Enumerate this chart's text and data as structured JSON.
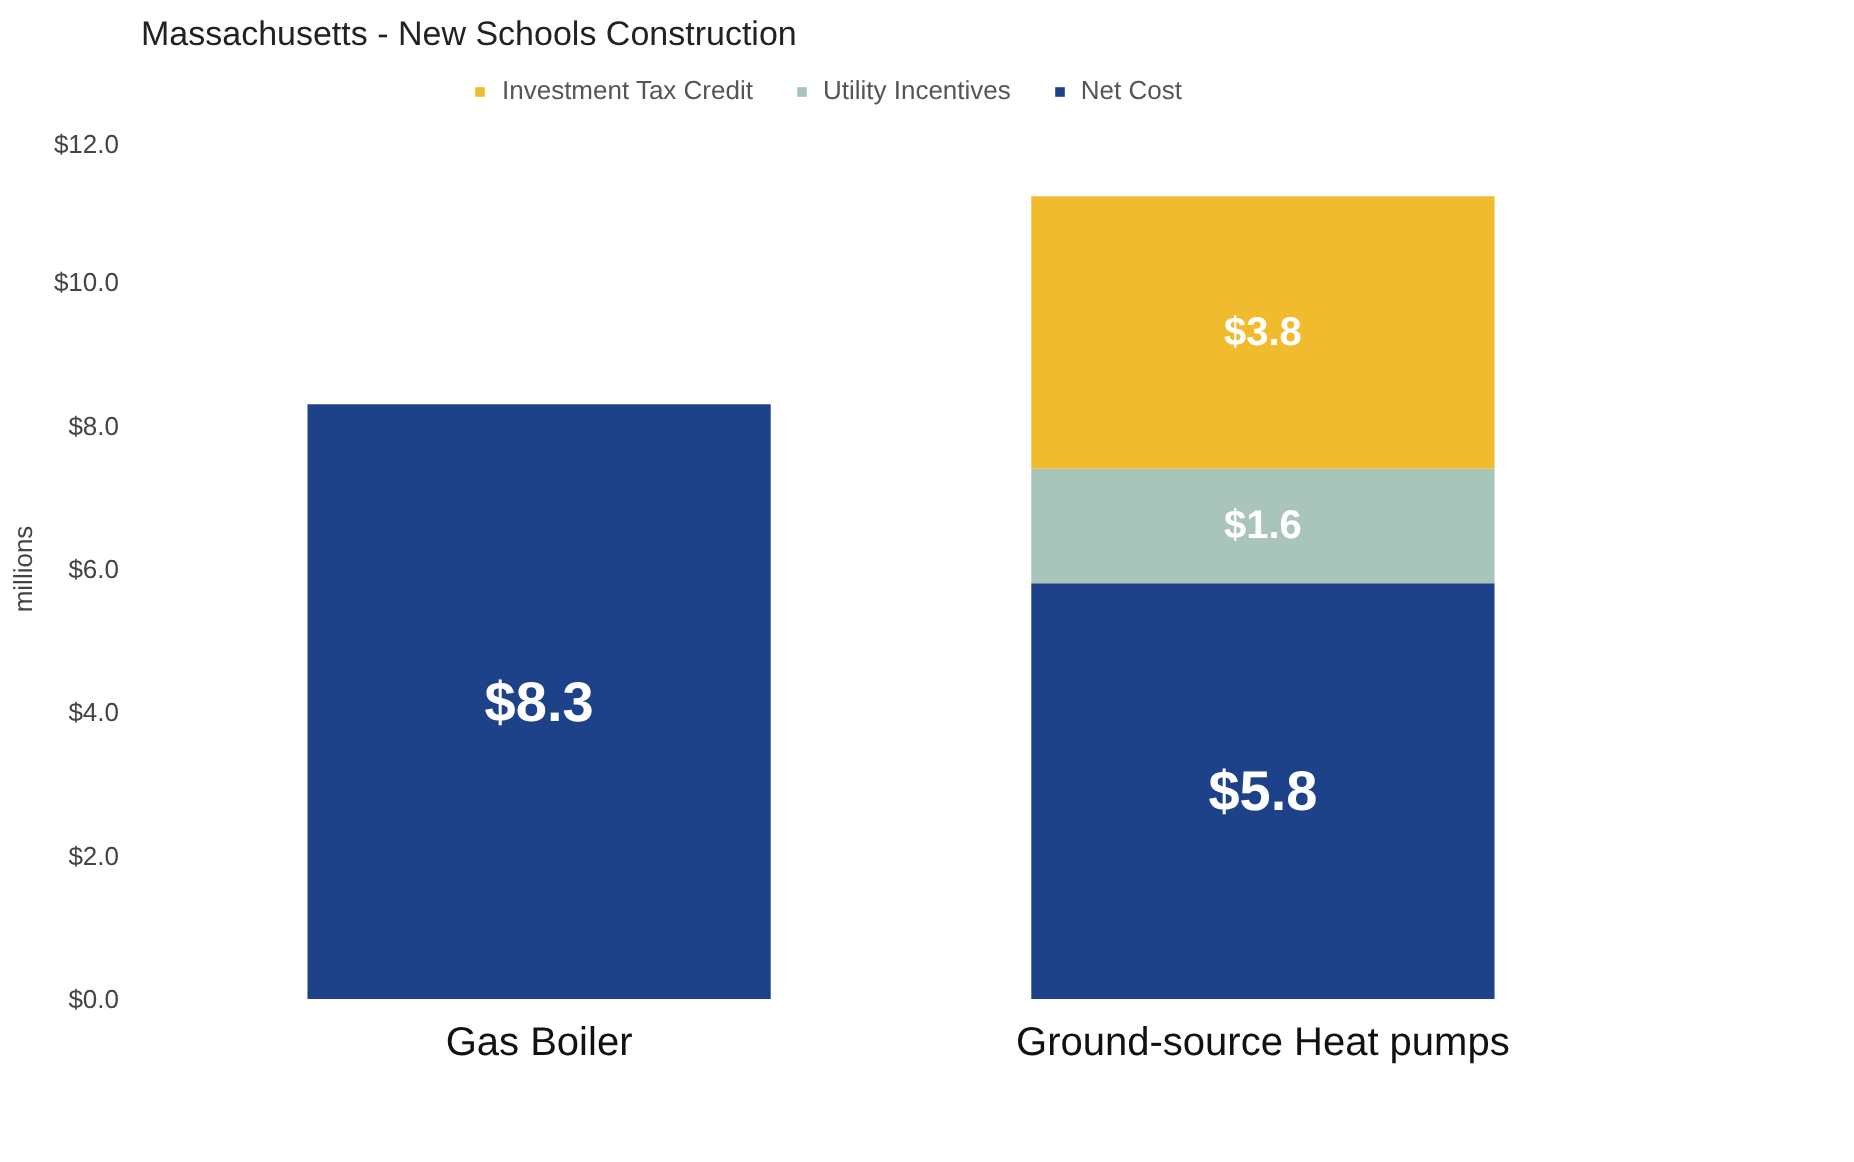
{
  "chart_data": {
    "type": "bar",
    "title": "Massachusetts - New Schools Construction",
    "ylabel": "millions",
    "categories": [
      "Gas Boiler",
      "Ground-source Heat pumps"
    ],
    "stacked": true,
    "series": [
      {
        "name": "Net Cost",
        "color": "#1d428a",
        "values": [
          8.3,
          5.8
        ],
        "value_labels": [
          "$8.3",
          "$5.8"
        ]
      },
      {
        "name": "Utility Incentives",
        "color": "#a9c4bb",
        "values": [
          null,
          1.6
        ],
        "value_labels": [
          null,
          "$1.6"
        ]
      },
      {
        "name": "Investment Tax Credit",
        "color": "#f0bc2e",
        "values": [
          null,
          3.8
        ],
        "value_labels": [
          null,
          "$3.8"
        ]
      }
    ],
    "ylim": [
      0,
      12
    ],
    "yticks": [
      {
        "value": 0,
        "label": "$0.0"
      },
      {
        "value": 2,
        "label": "$2.0"
      },
      {
        "value": 4,
        "label": "$4.0"
      },
      {
        "value": 6,
        "label": "$6.0"
      },
      {
        "value": 8,
        "label": "$8.0"
      },
      {
        "value": 10,
        "label": "$10.0"
      },
      {
        "value": 12,
        "label": "$12.0"
      }
    ],
    "grid": false,
    "legend": "top"
  }
}
